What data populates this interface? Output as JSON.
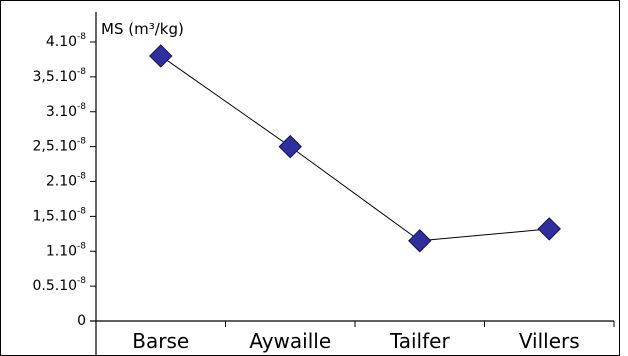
{
  "chart_data": {
    "type": "line",
    "categories": [
      "Barse",
      "Aywaille",
      "Tailfer",
      "Villers"
    ],
    "series": [
      {
        "values": [
          3.8e-08,
          2.5e-08,
          1.15e-08,
          1.32e-08
        ]
      }
    ],
    "ylabel": "MS (m³/kg)",
    "ylim": [
      0,
      4.1e-08
    ],
    "yticks": [
      0,
      5e-09,
      1e-08,
      1.5e-08,
      2e-08,
      2.5e-08,
      3e-08,
      3.5e-08,
      4e-08
    ],
    "ytick_labels": [
      {
        "base": "0",
        "exp": ""
      },
      {
        "base": "0.5.10",
        "exp": "-8"
      },
      {
        "base": "1.10",
        "exp": "-8"
      },
      {
        "base": "1,5.10",
        "exp": "-8"
      },
      {
        "base": "2.10",
        "exp": "-8"
      },
      {
        "base": "2,5.10",
        "exp": "-8"
      },
      {
        "base": "3.10",
        "exp": "-8"
      },
      {
        "base": "3,5.10",
        "exp": "-8"
      },
      {
        "base": "4.10",
        "exp": "-8"
      }
    ],
    "marker": "diamond",
    "colors": {
      "marker_fill": "#2e2e9e",
      "marker_stroke": "#11115e",
      "line": "#000000"
    },
    "grid": false,
    "legend": "none"
  }
}
